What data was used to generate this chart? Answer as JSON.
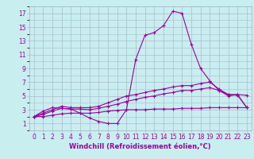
{
  "xlabel": "Windchill (Refroidissement éolien,°C)",
  "x": [
    0,
    1,
    2,
    3,
    4,
    5,
    6,
    7,
    8,
    9,
    10,
    11,
    12,
    13,
    14,
    15,
    16,
    17,
    18,
    19,
    20,
    21,
    22,
    23
  ],
  "line1": [
    2.0,
    2.8,
    3.3,
    3.2,
    3.1,
    2.5,
    1.8,
    1.3,
    1.0,
    1.0,
    3.0,
    10.3,
    13.8,
    14.2,
    15.2,
    17.3,
    17.0,
    12.5,
    9.0,
    7.2,
    5.8,
    5.0,
    5.2,
    5.1
  ],
  "line2": [
    2.0,
    2.5,
    3.0,
    3.5,
    3.3,
    3.3,
    3.3,
    3.5,
    4.0,
    4.5,
    5.0,
    5.2,
    5.5,
    5.8,
    6.0,
    6.3,
    6.5,
    6.5,
    6.8,
    7.0,
    6.0,
    5.2,
    5.2,
    3.3
  ],
  "line3": [
    2.0,
    2.3,
    2.8,
    3.2,
    3.1,
    3.1,
    3.0,
    3.2,
    3.5,
    3.8,
    4.2,
    4.5,
    4.8,
    5.0,
    5.3,
    5.5,
    5.8,
    5.8,
    6.0,
    6.2,
    5.8,
    5.2,
    5.1,
    3.3
  ],
  "line4": [
    2.0,
    2.0,
    2.2,
    2.4,
    2.5,
    2.5,
    2.5,
    2.6,
    2.8,
    2.9,
    3.0,
    3.0,
    3.0,
    3.1,
    3.1,
    3.1,
    3.2,
    3.2,
    3.2,
    3.3,
    3.3,
    3.3,
    3.3,
    3.3
  ],
  "line_color": "#990099",
  "bg_color": "#c8eef0",
  "grid_color": "#b0b8cc",
  "ylim": [
    0,
    18
  ],
  "xlim": [
    -0.5,
    23.5
  ],
  "yticks": [
    1,
    3,
    5,
    7,
    9,
    11,
    13,
    15,
    17
  ],
  "xticks": [
    0,
    1,
    2,
    3,
    4,
    5,
    6,
    7,
    8,
    9,
    10,
    11,
    12,
    13,
    14,
    15,
    16,
    17,
    18,
    19,
    20,
    21,
    22,
    23
  ],
  "tick_fontsize": 5.5,
  "xlabel_fontsize": 6.0,
  "marker": "+"
}
